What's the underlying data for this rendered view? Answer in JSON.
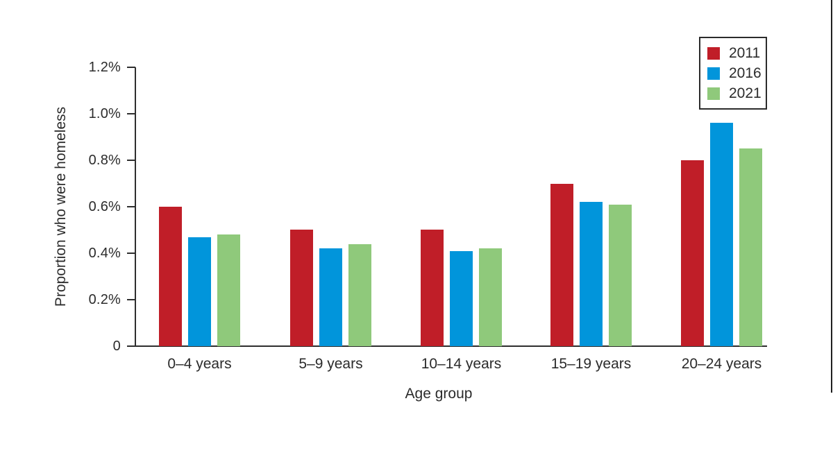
{
  "page": {
    "background": "#ffffff",
    "text_color": "#2B2B2B",
    "axis_color": "#2E2E2E"
  },
  "chart_data": {
    "type": "bar",
    "title": "",
    "xlabel": "Age group",
    "ylabel": "Proportion who were homeless",
    "categories": [
      "0–4 years",
      "5–9 years",
      "10–14 years",
      "15–19 years",
      "20–24 years"
    ],
    "series": [
      {
        "name": "2011",
        "color": "#C01E28",
        "values": [
          0.6,
          0.5,
          0.5,
          0.7,
          0.8
        ]
      },
      {
        "name": "2016",
        "color": "#0195DB",
        "values": [
          0.47,
          0.42,
          0.41,
          0.62,
          0.96
        ]
      },
      {
        "name": "2021",
        "color": "#8FC97B",
        "values": [
          0.48,
          0.44,
          0.42,
          0.61,
          0.85
        ]
      }
    ],
    "ylim": [
      0,
      1.2
    ],
    "ytick_values": [
      0,
      0.2,
      0.4,
      0.6,
      0.8,
      1.0,
      1.2
    ],
    "ytick_labels": [
      "0",
      "0.2%",
      "0.4%",
      "0.6%",
      "0.8%",
      "1.0%",
      "1.2%"
    ],
    "grid": "off",
    "legend_position": "top-right",
    "legend_border_color": "#2B2B2B"
  }
}
